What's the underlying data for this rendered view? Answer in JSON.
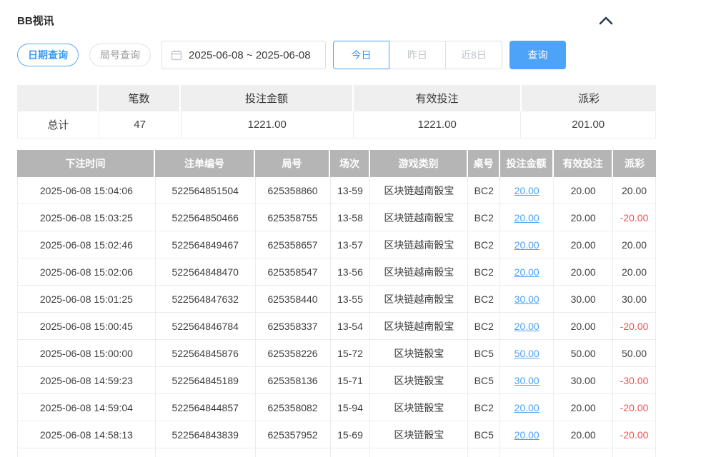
{
  "colors": {
    "accent_blue": "#4da3f7",
    "link_blue": "#4aa2f5",
    "negative_red": "#f05252",
    "table_header_bg": "#b5b5b5"
  },
  "header": {
    "title": "BB视讯",
    "collapse_icon": "chevron-up"
  },
  "toolbar": {
    "date_query_label": "日期查询",
    "round_query_label": "局号查询",
    "calendar_icon": "calendar",
    "date_range": "2025-06-08 ~ 2025-06-08",
    "quick_ranges": [
      "今日",
      "昨日",
      "近8日"
    ],
    "quick_active_index": 0,
    "search_label": "查询"
  },
  "summary": {
    "headers": [
      "",
      "笔数",
      "投注金额",
      "有效投注",
      "派彩"
    ],
    "total": {
      "label": "总计",
      "values": [
        "47",
        "1221.00",
        "1221.00",
        "201.00"
      ]
    }
  },
  "table": {
    "headers": [
      "下注时间",
      "注单编号",
      "局号",
      "场次",
      "游戏类别",
      "桌号",
      "投注金额",
      "有效投注",
      "派彩"
    ],
    "rows": [
      {
        "time": "2025-06-08 15:04:06",
        "order_no": "522564851504",
        "round_no": "625358860",
        "session": "13-59",
        "game": "区块链越南骰宝",
        "table_no": "BC2",
        "bet": "20.00",
        "valid": "20.00",
        "payout": "20.00"
      },
      {
        "time": "2025-06-08 15:03:25",
        "order_no": "522564850466",
        "round_no": "625358755",
        "session": "13-58",
        "game": "区块链越南骰宝",
        "table_no": "BC2",
        "bet": "20.00",
        "valid": "20.00",
        "payout": "-20.00"
      },
      {
        "time": "2025-06-08 15:02:46",
        "order_no": "522564849467",
        "round_no": "625358657",
        "session": "13-57",
        "game": "区块链越南骰宝",
        "table_no": "BC2",
        "bet": "20.00",
        "valid": "20.00",
        "payout": "20.00"
      },
      {
        "time": "2025-06-08 15:02:06",
        "order_no": "522564848470",
        "round_no": "625358547",
        "session": "13-56",
        "game": "区块链越南骰宝",
        "table_no": "BC2",
        "bet": "20.00",
        "valid": "20.00",
        "payout": "20.00"
      },
      {
        "time": "2025-06-08 15:01:25",
        "order_no": "522564847632",
        "round_no": "625358440",
        "session": "13-55",
        "game": "区块链越南骰宝",
        "table_no": "BC2",
        "bet": "30.00",
        "valid": "30.00",
        "payout": "30.00"
      },
      {
        "time": "2025-06-08 15:00:45",
        "order_no": "522564846784",
        "round_no": "625358337",
        "session": "13-54",
        "game": "区块链越南骰宝",
        "table_no": "BC2",
        "bet": "20.00",
        "valid": "20.00",
        "payout": "-20.00"
      },
      {
        "time": "2025-06-08 15:00:00",
        "order_no": "522564845876",
        "round_no": "625358226",
        "session": "15-72",
        "game": "区块链骰宝",
        "table_no": "BC5",
        "bet": "50.00",
        "valid": "50.00",
        "payout": "50.00"
      },
      {
        "time": "2025-06-08 14:59:23",
        "order_no": "522564845189",
        "round_no": "625358136",
        "session": "15-71",
        "game": "区块链骰宝",
        "table_no": "BC5",
        "bet": "30.00",
        "valid": "30.00",
        "payout": "-30.00"
      },
      {
        "time": "2025-06-08 14:59:04",
        "order_no": "522564844857",
        "round_no": "625358082",
        "session": "15-94",
        "game": "区块链骰宝",
        "table_no": "BC2",
        "bet": "20.00",
        "valid": "20.00",
        "payout": "-20.00"
      },
      {
        "time": "2025-06-08 14:58:13",
        "order_no": "522564843839",
        "round_no": "625357952",
        "session": "15-69",
        "game": "区块链骰宝",
        "table_no": "BC5",
        "bet": "20.00",
        "valid": "20.00",
        "payout": "-20.00"
      }
    ]
  }
}
